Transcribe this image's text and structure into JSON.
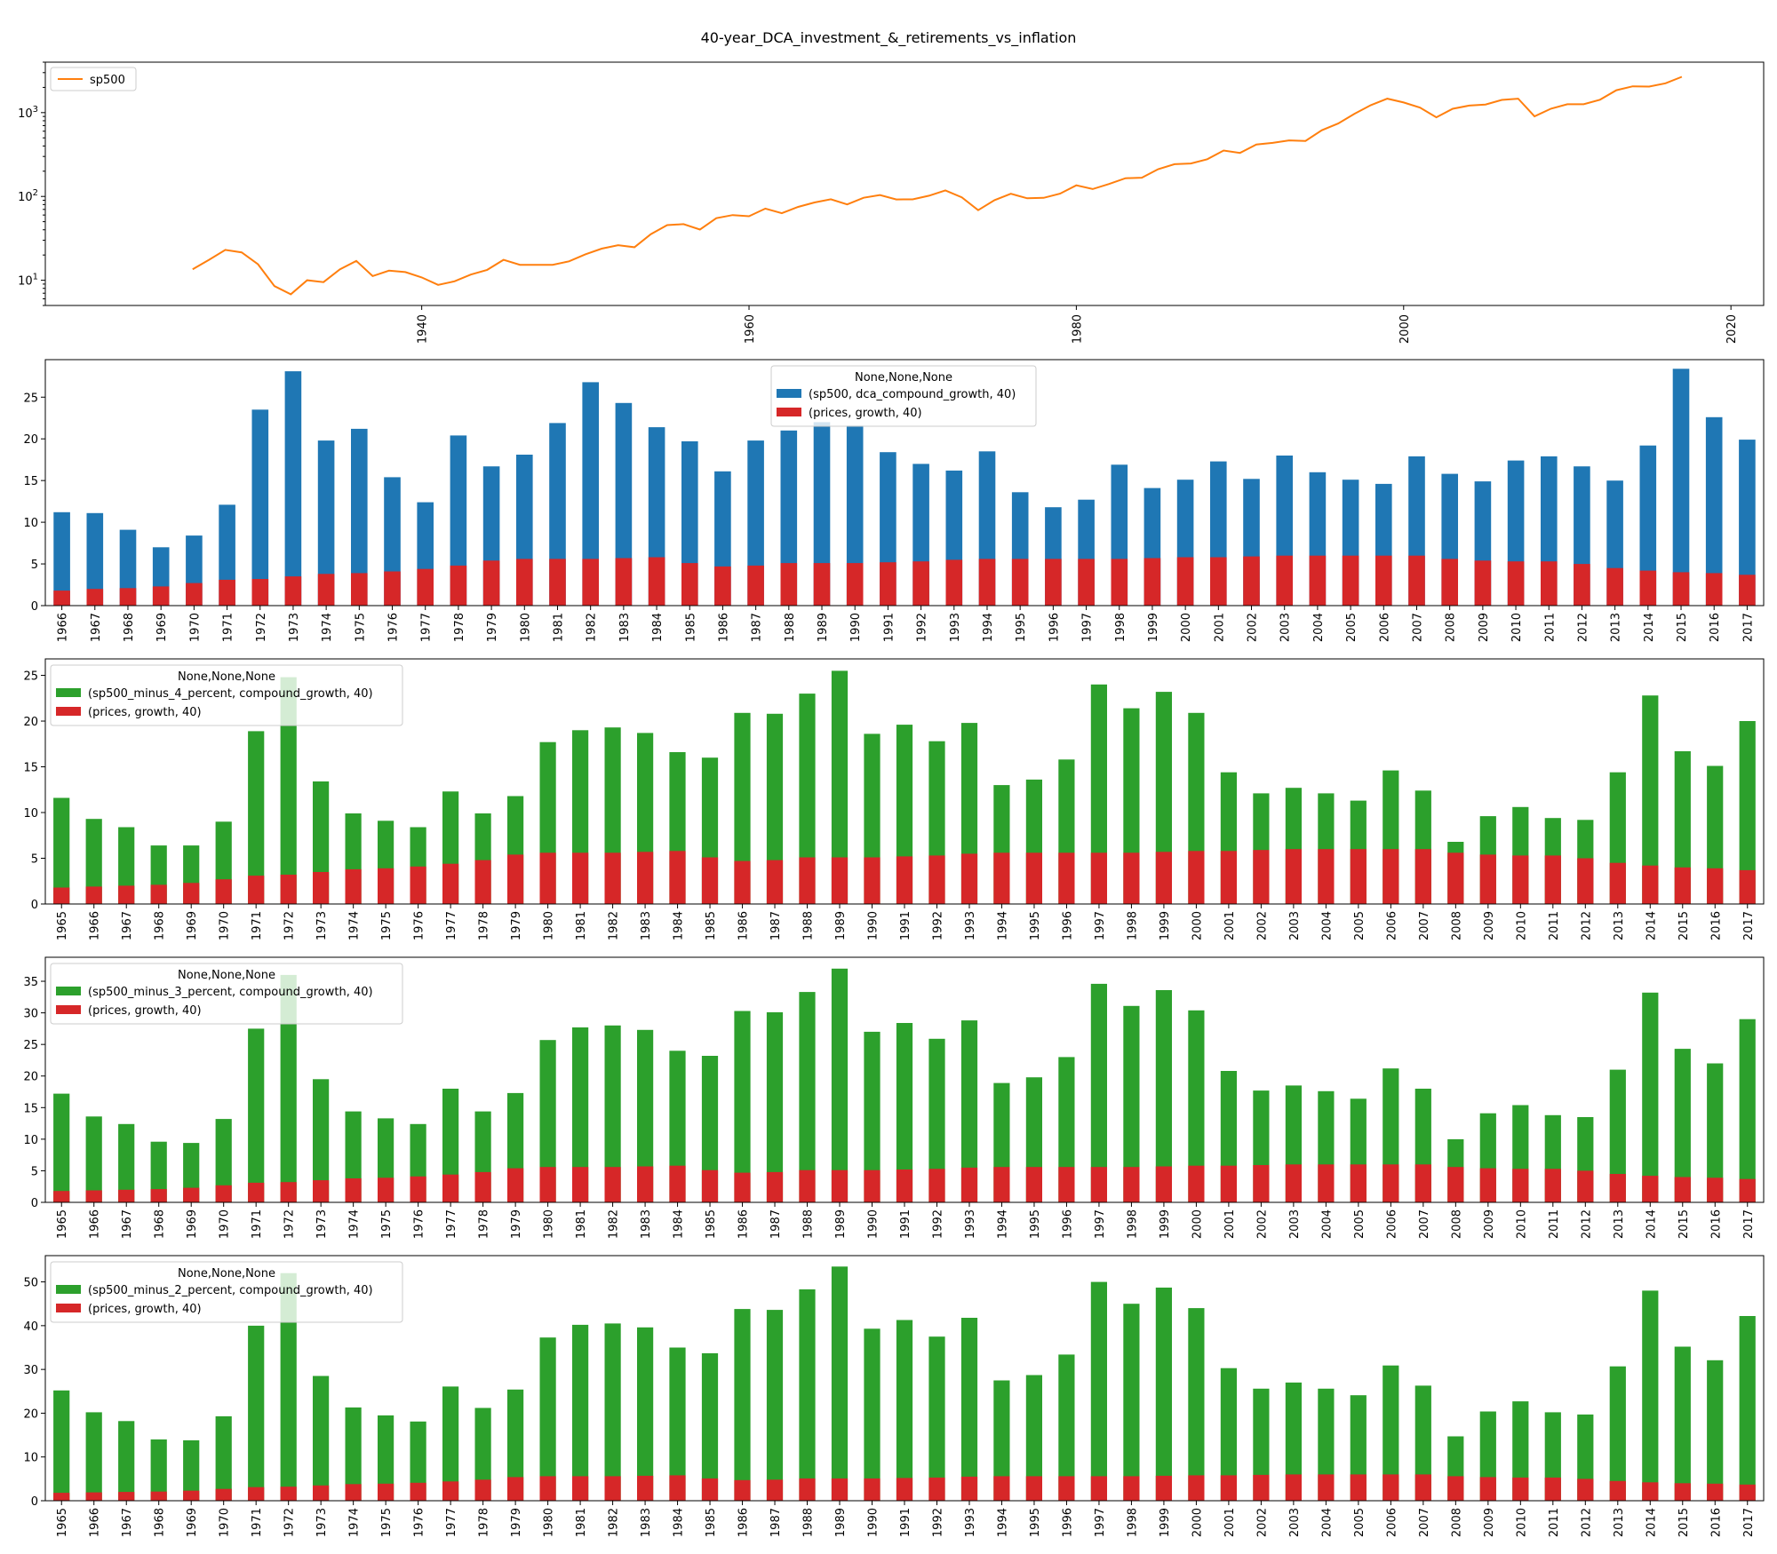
{
  "figure": {
    "title": "40-year_DCA_investment_&_retirements_vs_inflation"
  },
  "colors": {
    "sp500_line": "#ff7f0e",
    "blue_bar": "#1f77b4",
    "green_bar": "#2ca02c",
    "red_bar": "#d62728"
  },
  "chart_data": [
    {
      "type": "line",
      "yscale": "log",
      "legend": "top-left",
      "series": [
        {
          "name": "sp500",
          "x": [
            1926,
            1927,
            1928,
            1929,
            1930,
            1931,
            1932,
            1933,
            1934,
            1935,
            1936,
            1937,
            1938,
            1939,
            1940,
            1941,
            1942,
            1943,
            1944,
            1945,
            1946,
            1947,
            1948,
            1949,
            1950,
            1951,
            1952,
            1953,
            1954,
            1955,
            1956,
            1957,
            1958,
            1959,
            1960,
            1961,
            1962,
            1963,
            1964,
            1965,
            1966,
            1967,
            1968,
            1969,
            1970,
            1971,
            1972,
            1973,
            1974,
            1975,
            1976,
            1977,
            1978,
            1979,
            1980,
            1981,
            1982,
            1983,
            1984,
            1985,
            1986,
            1987,
            1988,
            1989,
            1990,
            1991,
            1992,
            1993,
            1994,
            1995,
            1996,
            1997,
            1998,
            1999,
            2000,
            2001,
            2002,
            2003,
            2004,
            2005,
            2006,
            2007,
            2008,
            2009,
            2010,
            2011,
            2012,
            2013,
            2014,
            2015,
            2016,
            2017
          ],
          "values": [
            13.5,
            17.5,
            23,
            21.5,
            15.5,
            8.5,
            6.8,
            10,
            9.5,
            13.5,
            17,
            11.2,
            13,
            12.5,
            10.8,
            8.8,
            9.7,
            11.7,
            13.3,
            17.5,
            15.3,
            15.3,
            15.3,
            16.8,
            20.4,
            23.8,
            26.2,
            24.8,
            35.5,
            45.5,
            46.7,
            40.3,
            55,
            59.9,
            58.1,
            71.6,
            63.1,
            75,
            84.8,
            92.4,
            80.3,
            96.5,
            103.9,
            92.1,
            92.2,
            102,
            118.1,
            97.6,
            68.6,
            90.2,
            107.5,
            95.1,
            96.1,
            107.9,
            135.8,
            122.6,
            140.6,
            164.9,
            167.2,
            211.3,
            242.2,
            247.1,
            277.7,
            353.4,
            330.2,
            417.1,
            435.7,
            466.5,
            459.3,
            615.9,
            740.7,
            970.4,
            1229.2,
            1469.3,
            1320.3,
            1148.1,
            879.8,
            1111.9,
            1211.9,
            1248.3,
            1418.3,
            1468.4,
            903.3,
            1115.1,
            1257.6,
            1257.6,
            1426.2,
            1848.4,
            2058.9,
            2043.9,
            2238.8,
            2673.6
          ]
        }
      ],
      "x_ticks": [
        "1940",
        "1960",
        "1980",
        "2000",
        "2020"
      ],
      "y_ticks": [
        "10^1",
        "10^2",
        "10^3"
      ],
      "ylim": [
        5,
        4000
      ],
      "xlim": [
        1917,
        2022
      ]
    },
    {
      "type": "bar",
      "stacked_overlap": true,
      "legend_title": "None,None,None",
      "legend": "top-center",
      "categories": [
        "1966",
        "1967",
        "1968",
        "1969",
        "1970",
        "1971",
        "1972",
        "1973",
        "1974",
        "1975",
        "1976",
        "1977",
        "1978",
        "1979",
        "1980",
        "1981",
        "1982",
        "1983",
        "1984",
        "1985",
        "1986",
        "1987",
        "1988",
        "1989",
        "1990",
        "1991",
        "1992",
        "1993",
        "1994",
        "1995",
        "1996",
        "1997",
        "1998",
        "1999",
        "2000",
        "2001",
        "2002",
        "2003",
        "2004",
        "2005",
        "2006",
        "2007",
        "2008",
        "2009",
        "2010",
        "2011",
        "2012",
        "2013",
        "2014",
        "2015",
        "2016",
        "2017"
      ],
      "series": [
        {
          "name": "(sp500, dca_compound_growth, 40)",
          "color": "blue_bar",
          "values": [
            11.2,
            11.1,
            9.1,
            7,
            8.4,
            12.1,
            23.5,
            28.1,
            19.8,
            21.2,
            15.4,
            12.4,
            20.4,
            16.7,
            18.1,
            21.9,
            26.8,
            24.3,
            21.4,
            19.7,
            16.1,
            19.8,
            21,
            22,
            21.6,
            18.4,
            17,
            16.2,
            18.5,
            13.6,
            11.8,
            12.7,
            16.9,
            14.1,
            15.1,
            17.3,
            15.2,
            18,
            16,
            15.1,
            14.6,
            17.9,
            15.8,
            14.9,
            17.4,
            17.9,
            16.7,
            15,
            19.2,
            28.4,
            22.6,
            19.9
          ]
        },
        {
          "name": "(prices, growth, 40)",
          "color": "red_bar",
          "values": [
            1.8,
            2,
            2.1,
            2.3,
            2.7,
            3.1,
            3.2,
            3.5,
            3.8,
            3.9,
            4.1,
            4.4,
            4.8,
            5.4,
            5.6,
            5.6,
            5.6,
            5.7,
            5.8,
            5.1,
            4.7,
            4.8,
            5.1,
            5.1,
            5.1,
            5.2,
            5.3,
            5.5,
            5.6,
            5.6,
            5.6,
            5.6,
            5.6,
            5.7,
            5.8,
            5.8,
            5.9,
            6,
            6,
            6,
            6,
            6,
            5.6,
            5.4,
            5.3,
            5.3,
            5,
            4.5,
            4.2,
            4,
            3.9,
            3.7
          ]
        }
      ],
      "y_ticks": [
        "0",
        "5",
        "10",
        "15",
        "20",
        "25"
      ],
      "ylim": [
        0,
        29.5
      ]
    },
    {
      "type": "bar",
      "stacked_overlap": true,
      "legend_title": "None,None,None",
      "legend": "top-left",
      "categories": [
        "1965",
        "1966",
        "1967",
        "1968",
        "1969",
        "1970",
        "1971",
        "1972",
        "1973",
        "1974",
        "1975",
        "1976",
        "1977",
        "1978",
        "1979",
        "1980",
        "1981",
        "1982",
        "1983",
        "1984",
        "1985",
        "1986",
        "1987",
        "1988",
        "1989",
        "1990",
        "1991",
        "1992",
        "1993",
        "1994",
        "1995",
        "1996",
        "1997",
        "1998",
        "1999",
        "2000",
        "2001",
        "2002",
        "2003",
        "2004",
        "2005",
        "2006",
        "2007",
        "2008",
        "2009",
        "2010",
        "2011",
        "2012",
        "2013",
        "2014",
        "2015",
        "2016",
        "2017"
      ],
      "series": [
        {
          "name": "(sp500_minus_4_percent, compound_growth, 40)",
          "color": "green_bar",
          "values": [
            11.6,
            9.3,
            8.4,
            6.4,
            6.4,
            9,
            18.9,
            24.8,
            13.4,
            9.9,
            9.1,
            8.4,
            12.3,
            9.9,
            11.8,
            17.7,
            19,
            19.3,
            18.7,
            16.6,
            16,
            20.9,
            20.8,
            23,
            25.5,
            18.6,
            19.6,
            17.8,
            19.8,
            13,
            13.6,
            15.8,
            24,
            21.4,
            23.2,
            20.9,
            14.4,
            12.1,
            12.7,
            12.1,
            11.3,
            14.6,
            12.4,
            6.8,
            9.6,
            10.6,
            9.4,
            9.2,
            14.4,
            22.8,
            16.7,
            15.1,
            20
          ]
        },
        {
          "name": "(prices, growth, 40)",
          "color": "red_bar",
          "values": [
            1.8,
            1.9,
            2,
            2.1,
            2.3,
            2.7,
            3.1,
            3.2,
            3.5,
            3.8,
            3.9,
            4.1,
            4.4,
            4.8,
            5.4,
            5.6,
            5.6,
            5.6,
            5.7,
            5.8,
            5.1,
            4.7,
            4.8,
            5.1,
            5.1,
            5.1,
            5.2,
            5.3,
            5.5,
            5.6,
            5.6,
            5.6,
            5.6,
            5.6,
            5.7,
            5.8,
            5.8,
            5.9,
            6,
            6,
            6,
            6,
            6,
            5.6,
            5.4,
            5.3,
            5.3,
            5,
            4.5,
            4.2,
            4,
            3.9,
            3.7
          ]
        }
      ],
      "y_ticks": [
        "0",
        "5",
        "10",
        "15",
        "20",
        "25"
      ],
      "ylim": [
        0,
        26.8
      ]
    },
    {
      "type": "bar",
      "stacked_overlap": true,
      "legend_title": "None,None,None",
      "legend": "top-left",
      "categories": [
        "1965",
        "1966",
        "1967",
        "1968",
        "1969",
        "1970",
        "1971",
        "1972",
        "1973",
        "1974",
        "1975",
        "1976",
        "1977",
        "1978",
        "1979",
        "1980",
        "1981",
        "1982",
        "1983",
        "1984",
        "1985",
        "1986",
        "1987",
        "1988",
        "1989",
        "1990",
        "1991",
        "1992",
        "1993",
        "1994",
        "1995",
        "1996",
        "1997",
        "1998",
        "1999",
        "2000",
        "2001",
        "2002",
        "2003",
        "2004",
        "2005",
        "2006",
        "2007",
        "2008",
        "2009",
        "2010",
        "2011",
        "2012",
        "2013",
        "2014",
        "2015",
        "2016",
        "2017"
      ],
      "series": [
        {
          "name": "(sp500_minus_3_percent, compound_growth, 40)",
          "color": "green_bar",
          "values": [
            17.2,
            13.6,
            12.4,
            9.6,
            9.4,
            13.2,
            27.5,
            36,
            19.5,
            14.4,
            13.3,
            12.4,
            18,
            14.4,
            17.3,
            25.7,
            27.7,
            28,
            27.3,
            24,
            23.2,
            30.3,
            30.1,
            33.3,
            37,
            27,
            28.4,
            25.9,
            28.8,
            18.9,
            19.8,
            23,
            34.6,
            31.1,
            33.6,
            30.4,
            20.8,
            17.7,
            18.5,
            17.6,
            16.4,
            21.2,
            18,
            10,
            14.1,
            15.4,
            13.8,
            13.5,
            21,
            33.2,
            24.3,
            22,
            29
          ]
        },
        {
          "name": "(prices, growth, 40)",
          "color": "red_bar",
          "values": [
            1.8,
            1.9,
            2,
            2.1,
            2.3,
            2.7,
            3.1,
            3.2,
            3.5,
            3.8,
            3.9,
            4.1,
            4.4,
            4.8,
            5.4,
            5.6,
            5.6,
            5.6,
            5.7,
            5.8,
            5.1,
            4.7,
            4.8,
            5.1,
            5.1,
            5.1,
            5.2,
            5.3,
            5.5,
            5.6,
            5.6,
            5.6,
            5.6,
            5.6,
            5.7,
            5.8,
            5.8,
            5.9,
            6,
            6,
            6,
            6,
            6,
            5.6,
            5.4,
            5.3,
            5.3,
            5,
            4.5,
            4.2,
            4,
            3.9,
            3.7
          ]
        }
      ],
      "y_ticks": [
        "0",
        "5",
        "10",
        "15",
        "20",
        "25",
        "30",
        "35"
      ],
      "ylim": [
        0,
        38.8
      ]
    },
    {
      "type": "bar",
      "stacked_overlap": true,
      "legend_title": "None,None,None",
      "legend": "top-left",
      "categories": [
        "1965",
        "1966",
        "1967",
        "1968",
        "1969",
        "1970",
        "1971",
        "1972",
        "1973",
        "1974",
        "1975",
        "1976",
        "1977",
        "1978",
        "1979",
        "1980",
        "1981",
        "1982",
        "1983",
        "1984",
        "1985",
        "1986",
        "1987",
        "1988",
        "1989",
        "1990",
        "1991",
        "1992",
        "1993",
        "1994",
        "1995",
        "1996",
        "1997",
        "1998",
        "1999",
        "2000",
        "2001",
        "2002",
        "2003",
        "2004",
        "2005",
        "2006",
        "2007",
        "2008",
        "2009",
        "2010",
        "2011",
        "2012",
        "2013",
        "2014",
        "2015",
        "2016",
        "2017"
      ],
      "series": [
        {
          "name": "(sp500_minus_2_percent, compound_growth, 40)",
          "color": "green_bar",
          "values": [
            25.2,
            20.2,
            18.2,
            14,
            13.8,
            19.3,
            40,
            52,
            28.5,
            21.3,
            19.5,
            18.1,
            26.1,
            21.2,
            25.4,
            37.3,
            40.2,
            40.5,
            39.6,
            35,
            33.7,
            43.8,
            43.6,
            48.3,
            53.5,
            39.3,
            41.3,
            37.5,
            41.8,
            27.5,
            28.7,
            33.4,
            50,
            45,
            48.7,
            44,
            30.3,
            25.6,
            27,
            25.6,
            24.1,
            30.9,
            26.3,
            14.7,
            20.4,
            22.7,
            20.2,
            19.7,
            30.7,
            48,
            35.2,
            32.1,
            42.2
          ]
        },
        {
          "name": "(prices, growth, 40)",
          "color": "red_bar",
          "values": [
            1.8,
            1.9,
            2,
            2.1,
            2.3,
            2.7,
            3.1,
            3.2,
            3.5,
            3.8,
            3.9,
            4.1,
            4.4,
            4.8,
            5.4,
            5.6,
            5.6,
            5.6,
            5.7,
            5.8,
            5.1,
            4.7,
            4.8,
            5.1,
            5.1,
            5.1,
            5.2,
            5.3,
            5.5,
            5.6,
            5.6,
            5.6,
            5.6,
            5.6,
            5.7,
            5.8,
            5.8,
            5.9,
            6,
            6,
            6,
            6,
            6,
            5.6,
            5.4,
            5.3,
            5.3,
            5,
            4.5,
            4.2,
            4,
            3.9,
            3.7
          ]
        }
      ],
      "y_ticks": [
        "0",
        "10",
        "20",
        "30",
        "40",
        "50"
      ],
      "ylim": [
        0,
        56
      ]
    }
  ]
}
